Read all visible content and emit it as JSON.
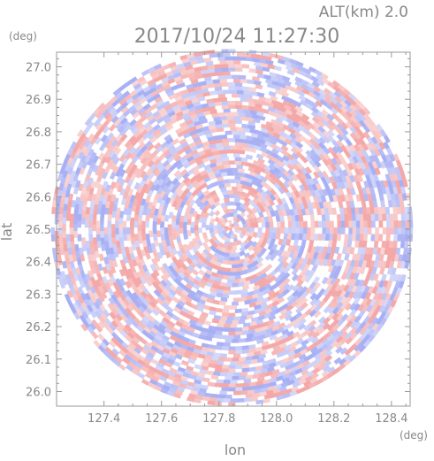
{
  "header": {
    "alt_label": "ALT(km)  2.0",
    "timestamp": "2017/10/24  11:27:30"
  },
  "axes": {
    "x_label": "lon",
    "y_label": "lat",
    "x_unit": "(deg)",
    "y_unit": "(deg)",
    "x_range": [
      127.235,
      128.465
    ],
    "y_range": [
      25.955,
      27.045
    ],
    "x_ticks": [
      "127.4",
      "127.6",
      "127.8",
      "128.0",
      "128.2",
      "128.4"
    ],
    "x_tick_values": [
      127.4,
      127.6,
      127.8,
      128.0,
      128.2,
      128.4
    ],
    "y_ticks": [
      "27.0",
      "26.9",
      "26.8",
      "26.7",
      "26.6",
      "26.5",
      "26.4",
      "26.3",
      "26.2",
      "26.1",
      "26.0"
    ],
    "y_tick_values": [
      27.0,
      26.9,
      26.8,
      26.7,
      26.6,
      26.5,
      26.4,
      26.3,
      26.2,
      26.1,
      26.0
    ]
  },
  "radar": {
    "center_lon": 127.845,
    "center_lat": 26.505,
    "radius_lon": 0.63,
    "radius_lat": 0.55,
    "positive_color": "#f4a8a8",
    "negative_color": "#a8b0f4",
    "neutral_color": "#ffffff",
    "frame_color": "#999999"
  }
}
